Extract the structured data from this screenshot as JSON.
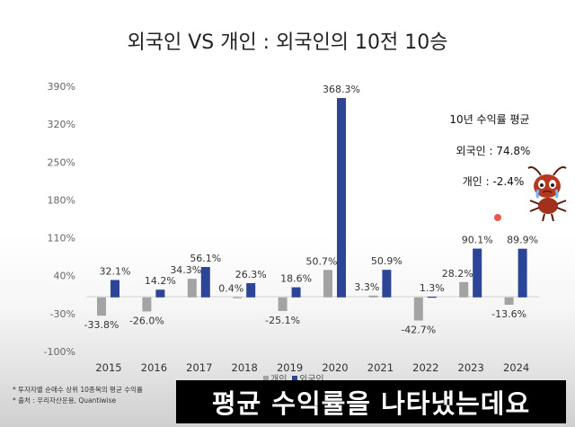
{
  "chart_data": {
    "type": "bar",
    "title": "외국인 VS 개인 : 외국인의 10전 10승",
    "categories": [
      "2015",
      "2016",
      "2017",
      "2018",
      "2019",
      "2020",
      "2021",
      "2022",
      "2023",
      "2024"
    ],
    "series": [
      {
        "name": "개인",
        "color": "#a3a3a3",
        "values": [
          -33.8,
          -26.0,
          34.3,
          0.4,
          -25.1,
          50.7,
          3.3,
          -42.7,
          28.2,
          -13.6
        ],
        "labels": [
          "-33.8%",
          "-26.0%",
          "34.3%",
          "0.4%",
          "-25.1%",
          "50.7%",
          "3.3%",
          "-42.7%",
          "28.2%",
          "-13.6%"
        ]
      },
      {
        "name": "외국인",
        "color": "#2c4596",
        "values": [
          32.1,
          14.2,
          56.1,
          26.3,
          18.6,
          368.3,
          50.9,
          1.3,
          90.1,
          89.9
        ],
        "labels": [
          "32.1%",
          "14.2%",
          "56.1%",
          "26.3%",
          "18.6%",
          "368.3%",
          "50.9%",
          "1.3%",
          "90.1%",
          "89.9%"
        ]
      }
    ],
    "yticks": [
      390,
      320,
      250,
      180,
      110,
      40,
      -30,
      -100
    ],
    "ytick_labels": [
      "390%",
      "320%",
      "250%",
      "180%",
      "110%",
      "40%",
      "-30%",
      "-100%"
    ],
    "ylim": [
      -100,
      390
    ],
    "xlabel": "",
    "ylabel": "",
    "legend_position": "bottom-center",
    "summary": {
      "title": "10년 수익률 평균",
      "foreign": "외국인 : 74.8%",
      "individual": "개인 : -2.4%"
    }
  },
  "footnotes": {
    "line1": "* 투자자별 순매수 상위 10종목의 평균 수익률",
    "line2": "* 출처 : 우리자산운용, Quantiwise"
  },
  "subtitle": "평균 수익률을 나타냈는데요",
  "colors": {
    "individual": "#a3a3a3",
    "foreign": "#2c4596",
    "subtitle_bg": "#000000",
    "ant": "#b5381f"
  },
  "icons": {
    "mascot": "crying-ant-icon",
    "cursor": "pointer-dot-icon"
  }
}
